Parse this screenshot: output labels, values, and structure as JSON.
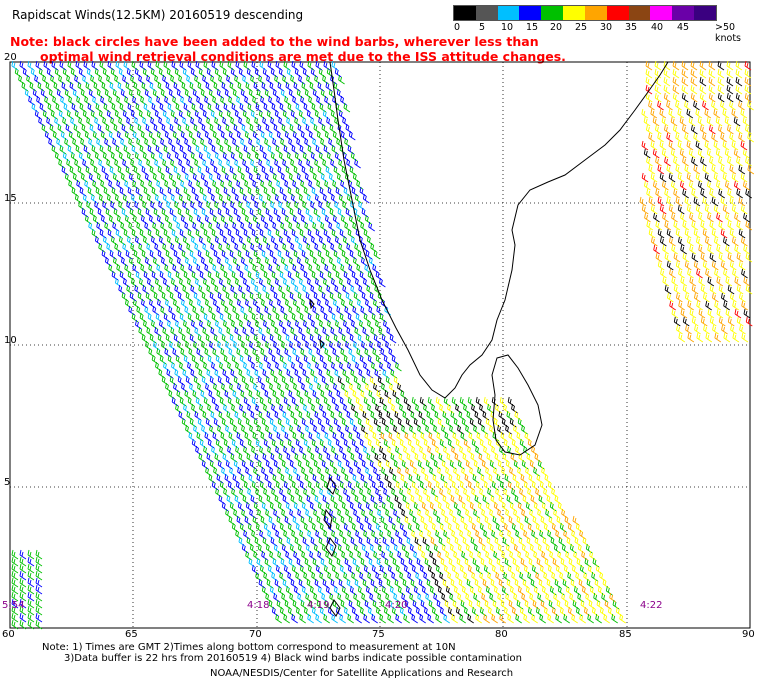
{
  "title": "Rapidscat Winds(12.5KM) 20160519 descending",
  "note_line1": "Note: black circles have been added to the wind barbs, wherever less than",
  "note_line2": "optimal wind retrieval conditions are met due to the ISS attitude changes.",
  "legend": {
    "labels": [
      "0",
      "5",
      "10",
      "15",
      "20",
      "25",
      "30",
      "35",
      "40",
      "45",
      ">50 knots"
    ],
    "colors": [
      "#000000",
      "#555555",
      "#00bfff",
      "#0000ff",
      "#00c000",
      "#ffff00",
      "#ffa500",
      "#ff0000",
      "#8b4513",
      "#ff00ff",
      "#6a00a8",
      "#3a0080"
    ]
  },
  "lat_labels": [
    "20",
    "15",
    "10",
    "5"
  ],
  "lon_labels": [
    "60",
    "65",
    "70",
    "75",
    "80",
    "85",
    "90"
  ],
  "time_labels": [
    "5:54",
    "4:18",
    "4:19",
    "4:20",
    "4:22"
  ],
  "footnote_line1": "Note: 1) Times are GMT 2)Times along bottom correspond to measurement at 10N",
  "footnote_line2": "3)Data buffer is 22 hrs from 20160519 4) Black wind barbs indicate possible contamination",
  "credit": "NOAA/NESDIS/Center for Satellite Applications and Research"
}
